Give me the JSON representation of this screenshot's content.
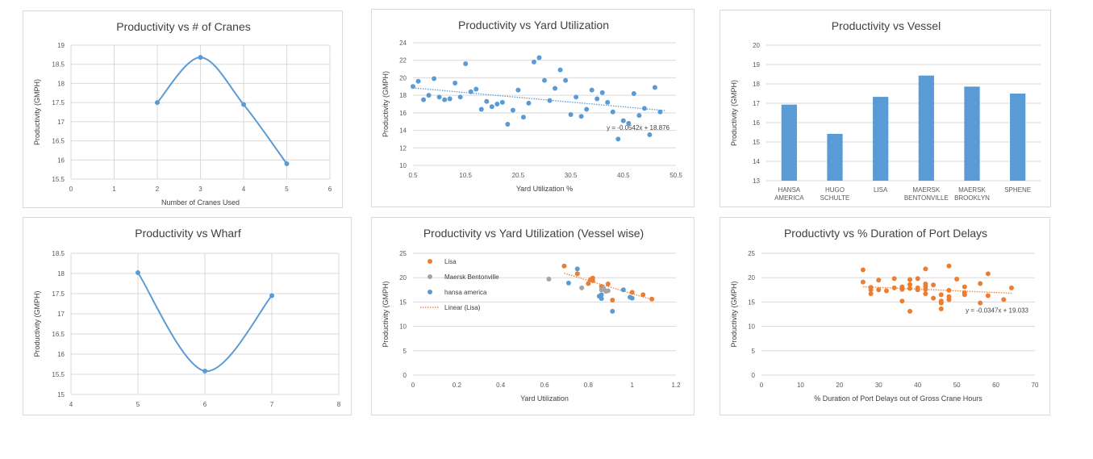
{
  "colors": {
    "blue": "#5b9bd5",
    "orange": "#ed7d31",
    "gray": "#a5a5a5",
    "grid": "#d9d9d9"
  },
  "chart_data": [
    {
      "id": "cranes",
      "type": "line",
      "smooth": true,
      "title": "Productivity vs # of Cranes",
      "xlabel": "Number of Cranes Used",
      "ylabel": "Productivity (GMPH)",
      "xlim": [
        0,
        6
      ],
      "ylim": [
        15.5,
        19
      ],
      "xticks": [
        "0",
        "1",
        "2",
        "3",
        "4",
        "5",
        "6"
      ],
      "yticks": [
        "15.5",
        "16",
        "16.5",
        "17",
        "17.5",
        "18",
        "18.5",
        "19"
      ],
      "grid": "both",
      "series": [
        {
          "color": "#5b9bd5",
          "x": [
            2,
            3,
            4,
            5
          ],
          "y": [
            17.5,
            18.68,
            17.45,
            15.9
          ]
        }
      ]
    },
    {
      "id": "yard",
      "type": "scatter",
      "title": "Productivity vs Yard Utilization",
      "xlabel": "Yard Utilization %",
      "ylabel": "Productivity (GMPH)",
      "xlim": [
        0.5,
        50.5
      ],
      "ylim": [
        10,
        24
      ],
      "xticks": [
        "0.5",
        "10.5",
        "20.5",
        "30.5",
        "40.5",
        "50.5"
      ],
      "yticks": [
        "10",
        "12",
        "14",
        "16",
        "18",
        "20",
        "22",
        "24"
      ],
      "grid": "horizontal",
      "trendline": {
        "slope": -0.0542,
        "intercept": 18.876,
        "x": [
          0.5,
          48.5
        ],
        "label": "y = -0.0542x + 18.876"
      },
      "series": [
        {
          "color": "#5b9bd5",
          "x": [
            0.5,
            1.5,
            2.5,
            3.5,
            4.5,
            5.5,
            6.5,
            7.5,
            8.5,
            9.5,
            10.5,
            11.5,
            12.5,
            13.5,
            14.5,
            15.5,
            16.5,
            17.5,
            18.5,
            19.5,
            20.5,
            21.5,
            22.5,
            23.5,
            24.5,
            25.5,
            26.5,
            27.5,
            28.5,
            29.5,
            30.5,
            31.5,
            32.5,
            33.5,
            34.5,
            35.5,
            36.5,
            37.5,
            38.5,
            39.5,
            40.5,
            41.5,
            42.5,
            43.5,
            44.5,
            45.5,
            46.5,
            47.5
          ],
          "y": [
            19.0,
            19.6,
            17.5,
            18.0,
            19.9,
            17.8,
            17.5,
            17.6,
            19.4,
            17.8,
            21.6,
            18.4,
            18.7,
            16.4,
            17.3,
            16.7,
            17.0,
            17.2,
            14.7,
            16.3,
            18.6,
            15.5,
            17.1,
            21.8,
            22.3,
            19.7,
            17.4,
            18.8,
            20.9,
            19.7,
            15.8,
            17.8,
            15.6,
            16.4,
            18.6,
            17.6,
            18.3,
            17.2,
            16.1,
            13.0,
            15.1,
            14.8,
            18.2,
            15.7,
            16.5,
            13.5,
            18.9,
            16.1
          ]
        }
      ]
    },
    {
      "id": "vessel",
      "type": "bar",
      "title": "Productivity vs Vessel",
      "ylabel": "Productivity (GMPH)",
      "ylim": [
        13,
        20
      ],
      "yticks": [
        "13",
        "14",
        "15",
        "16",
        "17",
        "18",
        "19",
        "20"
      ],
      "grid": "horizontal",
      "categories": [
        [
          "HANSA",
          "AMERICA"
        ],
        [
          "HUGO",
          "SCHULTE"
        ],
        [
          "LISA"
        ],
        [
          "MAERSK",
          "BENTONVILLE"
        ],
        [
          "MAERSK",
          "BROOKLYN"
        ],
        [
          "SPHENE"
        ]
      ],
      "series": [
        {
          "color": "#5b9bd5",
          "values": [
            16.93,
            15.42,
            17.33,
            18.43,
            17.86,
            17.5
          ]
        }
      ]
    },
    {
      "id": "wharf",
      "type": "line",
      "smooth": true,
      "title": "Productivity vs Wharf",
      "ylabel": "Productivity (GMPH)",
      "xlim": [
        4,
        8
      ],
      "ylim": [
        15,
        18.5
      ],
      "xticks": [
        "4",
        "5",
        "6",
        "7",
        "8"
      ],
      "yticks": [
        "15",
        "15.5",
        "16",
        "16.5",
        "17",
        "17.5",
        "18",
        "18.5"
      ],
      "grid": "both",
      "series": [
        {
          "color": "#5b9bd5",
          "x": [
            5,
            6,
            7
          ],
          "y": [
            18.02,
            15.58,
            17.45
          ]
        }
      ]
    },
    {
      "id": "yard-vessel",
      "type": "scatter",
      "title": "Productivity vs Yard Utilization (Vessel wise)",
      "xlabel": "Yard Utilization",
      "ylabel": "Productivity (GMPH)",
      "xlim": [
        0,
        1.2
      ],
      "ylim": [
        0,
        25
      ],
      "xticks": [
        "0",
        "0.2",
        "0.4",
        "0.6",
        "0.8",
        "1",
        "1.2"
      ],
      "yticks": [
        "0",
        "5",
        "10",
        "15",
        "20",
        "25"
      ],
      "grid": "horizontal",
      "legend": {
        "position": "top-left",
        "trend_label": "Linear (Lisa)"
      },
      "series": [
        {
          "name": "Lisa",
          "color": "#ed7d31",
          "x": [
            0.69,
            0.75,
            0.8,
            0.81,
            0.82,
            0.82,
            0.86,
            0.87,
            0.89,
            0.91,
            1.0,
            1.05,
            1.09
          ],
          "y": [
            22.4,
            20.8,
            18.8,
            19.6,
            19.9,
            19.4,
            18.2,
            17.6,
            18.7,
            15.4,
            17.0,
            16.5,
            15.6
          ]
        },
        {
          "name": "Maersk Bentonville",
          "color": "#a5a5a5",
          "x": [
            0.62,
            0.77,
            0.86,
            0.87,
            0.88,
            0.89
          ],
          "y": [
            19.7,
            17.9,
            17.5,
            17.8,
            17.2,
            17.3
          ]
        },
        {
          "name": "hansa america",
          "color": "#5b9bd5",
          "x": [
            0.71,
            0.75,
            0.85,
            0.86,
            0.91,
            0.96,
            0.99,
            1.0,
            0.86
          ],
          "y": [
            18.9,
            21.8,
            16.2,
            15.7,
            13.1,
            17.5,
            16.0,
            15.8,
            16.5
          ]
        }
      ],
      "trendline": {
        "series": "Lisa",
        "x": [
          0.69,
          1.09
        ],
        "y": [
          20.9,
          15.5
        ],
        "color": "#ed7d31"
      }
    },
    {
      "id": "port-delays",
      "type": "scatter",
      "title": "Productivty vs % Duration of Port Delays",
      "xlabel": "% Duration of Port Delays out of Gross Crane Hours",
      "ylabel": "Productivity (GMPH)",
      "xlim": [
        0,
        70
      ],
      "ylim": [
        0,
        25
      ],
      "xticks": [
        "0",
        "10",
        "20",
        "30",
        "40",
        "50",
        "60",
        "70"
      ],
      "yticks": [
        "0",
        "5",
        "10",
        "15",
        "20",
        "25"
      ],
      "grid": "horizontal",
      "trendline": {
        "slope": -0.0347,
        "intercept": 19.033,
        "x": [
          26,
          64
        ],
        "label": "y = -0.0347x + 19.033"
      },
      "series": [
        {
          "color": "#ed7d31",
          "x": [
            26,
            26,
            28,
            28,
            28,
            30,
            30,
            32,
            34,
            34,
            36,
            36,
            36,
            38,
            38,
            38,
            38,
            40,
            40,
            40,
            42,
            42,
            42,
            42,
            42,
            44,
            44,
            46,
            46,
            46,
            46,
            48,
            48,
            48,
            48,
            50,
            52,
            52,
            52,
            56,
            56,
            58,
            58,
            62,
            64
          ],
          "y": [
            21.6,
            19.1,
            17.5,
            16.7,
            18.0,
            19.5,
            17.5,
            17.3,
            19.8,
            17.9,
            17.6,
            15.2,
            18.1,
            19.6,
            18.6,
            17.8,
            13.1,
            19.8,
            17.5,
            17.9,
            21.8,
            18.7,
            17.6,
            16.7,
            18.2,
            18.5,
            15.8,
            16.5,
            15.2,
            13.6,
            14.8,
            22.4,
            17.4,
            16.1,
            15.5,
            19.7,
            18.1,
            16.9,
            16.5,
            18.8,
            14.8,
            20.8,
            16.3,
            15.5,
            17.9
          ]
        }
      ]
    }
  ]
}
